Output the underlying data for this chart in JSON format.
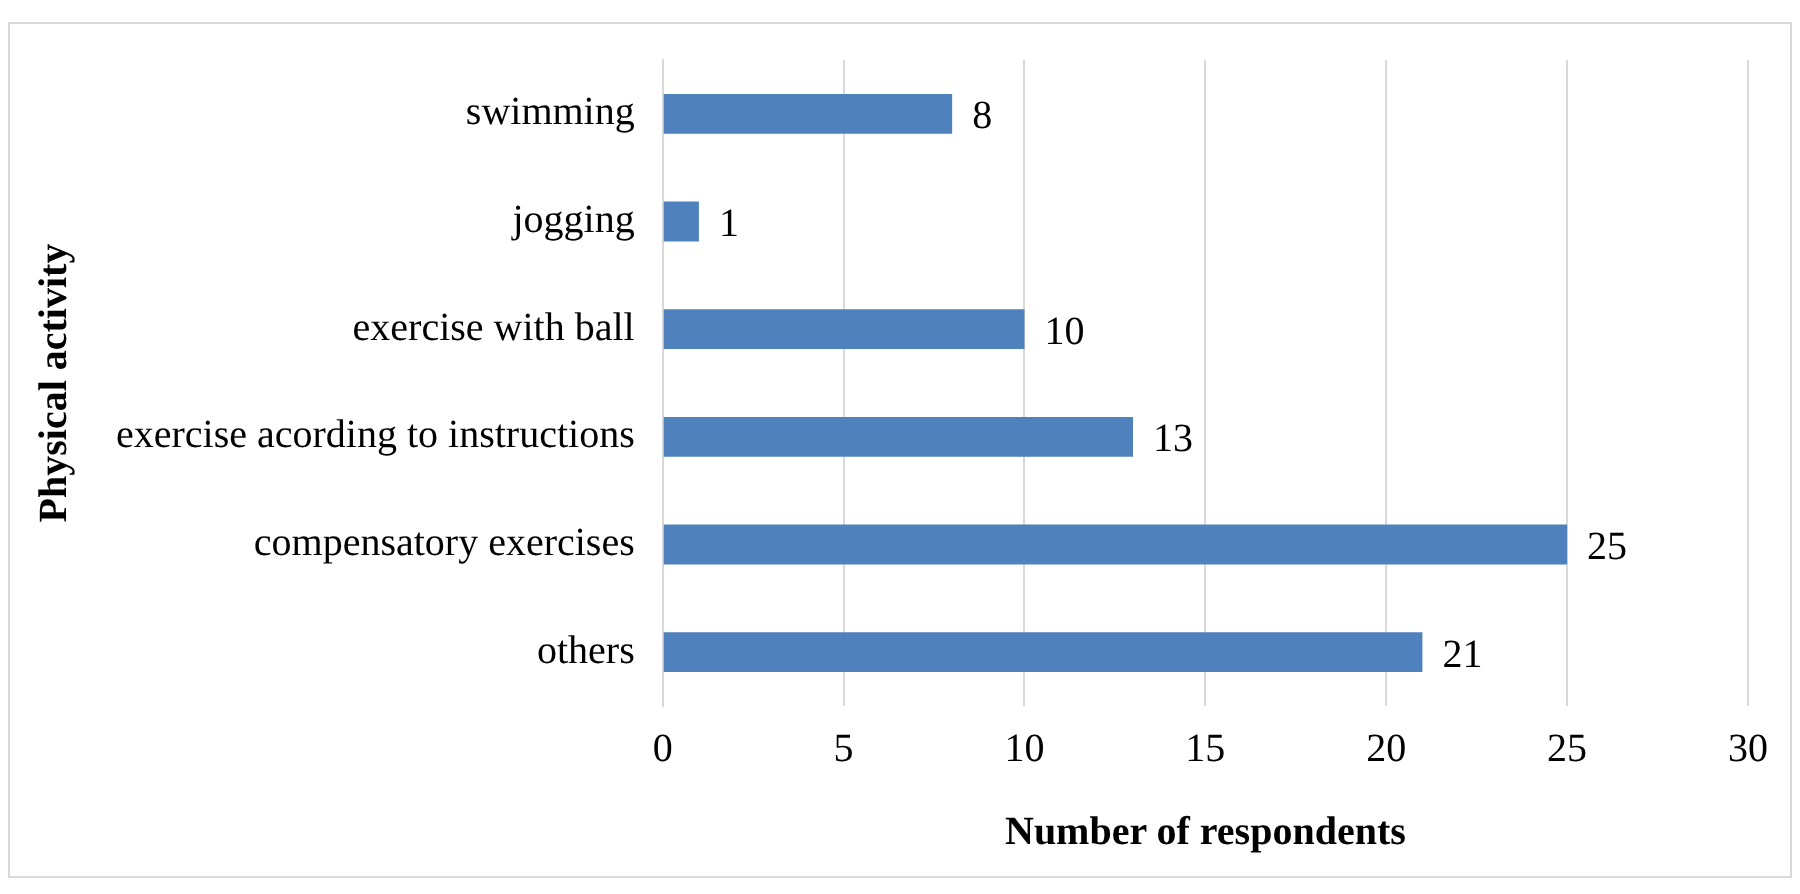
{
  "chart_data": {
    "type": "bar",
    "orientation": "horizontal",
    "xlabel": "Number of respondents",
    "ylabel": "Physical activity",
    "categories": [
      "swimming",
      "jogging",
      "exercise with ball",
      "exercise acording to instructions",
      "compensatory exercises",
      "others"
    ],
    "values": [
      8,
      1,
      10,
      13,
      25,
      21
    ],
    "color": "#4f81bd",
    "xlim": [
      0,
      30
    ],
    "xticks": [
      0,
      5,
      10,
      15,
      20,
      25,
      30
    ],
    "grid": "x",
    "data_labels": true,
    "legend": false
  }
}
